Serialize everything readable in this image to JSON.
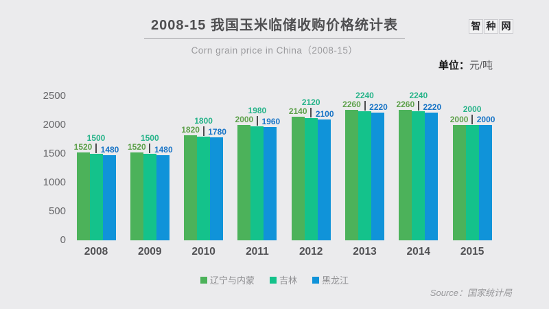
{
  "header": {
    "title": "2008-15 我国玉米临储收购价格统计表",
    "subtitle": "Corn grain price in China（2008-15）",
    "logo": "智种网",
    "unit_label": "单位：",
    "unit_value": "元/吨"
  },
  "chart_data": {
    "type": "bar",
    "title": "2008-15 我国玉米临储收购价格统计表",
    "subtitle": "Corn grain price in China（2008-15）",
    "unit": "元/吨",
    "categories": [
      "2008",
      "2009",
      "2010",
      "2011",
      "2012",
      "2013",
      "2014",
      "2015"
    ],
    "series": [
      {
        "name": "辽宁与内蒙",
        "color": "#4cb25a",
        "label_color": "#5da04a",
        "values": [
          1520,
          1520,
          1820,
          2000,
          2140,
          2260,
          2260,
          2000
        ]
      },
      {
        "name": "吉林",
        "color": "#14c28b",
        "label_color": "#26b389",
        "values": [
          1500,
          1500,
          1800,
          1980,
          2120,
          2240,
          2240,
          2000
        ]
      },
      {
        "name": "黑龙江",
        "color": "#1093d9",
        "label_color": "#1874c6",
        "values": [
          1480,
          1480,
          1780,
          1960,
          2100,
          2220,
          2220,
          2000
        ]
      }
    ],
    "y_ticks": [
      0,
      500,
      1000,
      1500,
      2000,
      2500
    ],
    "ylim": [
      0,
      2500
    ],
    "grid": false,
    "legend_position": "bottom",
    "data_labels": true
  },
  "footer": {
    "source": "Source：国家统计局"
  },
  "colors": {
    "background": "#ebebed",
    "title_text": "#4f4f51",
    "subtitle_text": "#9a9a9d",
    "axis_text": "#68686b",
    "legend_text": "#8f8f92"
  }
}
